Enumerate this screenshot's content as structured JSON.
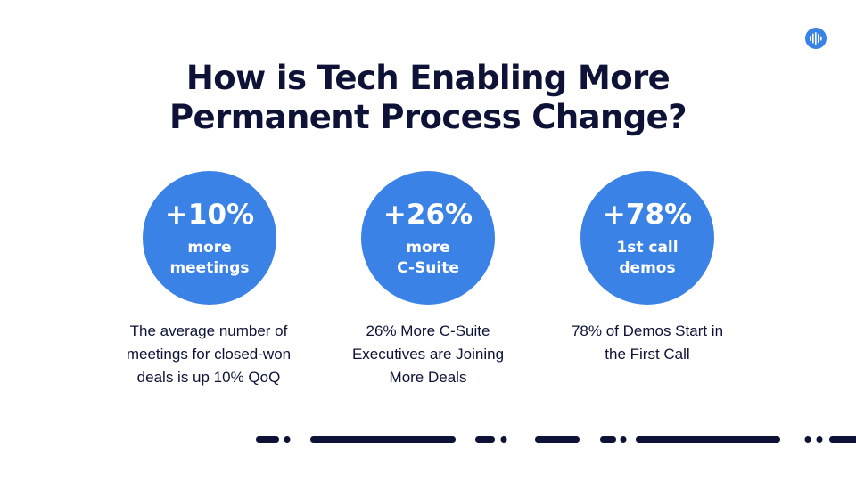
{
  "logo": {
    "icon": "soundwave-icon",
    "color": "#3b82e6"
  },
  "title": {
    "line1": "How is Tech Enabling More",
    "line2": "Permanent Process Change?"
  },
  "stats": [
    {
      "value": "+10%",
      "label_line1": "more",
      "label_line2": "meetings",
      "description": [
        "The average number of",
        "meetings for closed-won",
        "deals is up 10% QoQ"
      ]
    },
    {
      "value": "+26%",
      "label_line1": "more",
      "label_line2": "C-Suite",
      "description": [
        "26% More C-Suite",
        "Executives are Joining",
        "More Deals"
      ]
    },
    {
      "value": "+78%",
      "label_line1": "1st call",
      "label_line2": "demos",
      "description": [
        "78% of Demos Start in",
        "the First Call"
      ]
    }
  ],
  "colors": {
    "accent": "#3b82e6",
    "text": "#0d1236",
    "background": "#ffffff"
  }
}
